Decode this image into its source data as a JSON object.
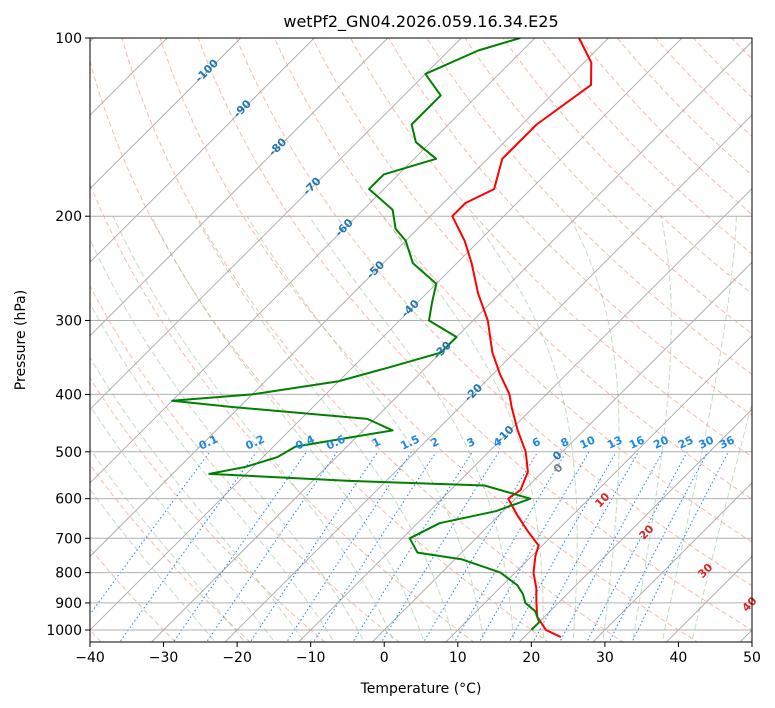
{
  "chart_data": {
    "type": "line",
    "title": "wetPf2_GN04.2026.059.16.34.E25",
    "xlabel": "Temperature (°C)",
    "ylabel": "Pressure (hPa)",
    "xlim": [
      -40,
      50
    ],
    "ylim": [
      1050,
      100
    ],
    "x_ticks": [
      "−40",
      "−30",
      "−20",
      "−10",
      "0",
      "10",
      "20",
      "30",
      "40",
      "50"
    ],
    "y_ticks": [
      {
        "p": 100,
        "label": "100"
      },
      {
        "p": 200,
        "label": "200"
      },
      {
        "p": 300,
        "label": "300"
      },
      {
        "p": 400,
        "label": "400"
      },
      {
        "p": 500,
        "label": "500"
      },
      {
        "p": 600,
        "label": "600"
      },
      {
        "p": 700,
        "label": "700"
      },
      {
        "p": 800,
        "label": "800"
      },
      {
        "p": 900,
        "label": "900"
      },
      {
        "p": 1000,
        "label": "1000"
      }
    ],
    "series": [
      {
        "name": "temperature",
        "color": "#ff0000",
        "points": [
          [
            1028,
            25
          ],
          [
            1000,
            22
          ],
          [
            950,
            19
          ],
          [
            900,
            17
          ],
          [
            850,
            15
          ],
          [
            800,
            12.5
          ],
          [
            750,
            10.5
          ],
          [
            720,
            9.5
          ],
          [
            680,
            6
          ],
          [
            640,
            2.5
          ],
          [
            600,
            -1
          ],
          [
            580,
            -0.5
          ],
          [
            540,
            -2
          ],
          [
            500,
            -5
          ],
          [
            460,
            -9
          ],
          [
            420,
            -13
          ],
          [
            400,
            -15
          ],
          [
            370,
            -19
          ],
          [
            340,
            -23
          ],
          [
            300,
            -28
          ],
          [
            270,
            -33
          ],
          [
            240,
            -38
          ],
          [
            220,
            -42
          ],
          [
            200,
            -47
          ],
          [
            190,
            -47
          ],
          [
            180,
            -45
          ],
          [
            160,
            -48
          ],
          [
            140,
            -48
          ],
          [
            120,
            -46
          ],
          [
            110,
            -49
          ],
          [
            100,
            -54
          ]
        ]
      },
      {
        "name": "dewpoint",
        "color": "#008000",
        "points": [
          [
            1000,
            20
          ],
          [
            970,
            20
          ],
          [
            930,
            18
          ],
          [
            900,
            15.5
          ],
          [
            870,
            14
          ],
          [
            840,
            12
          ],
          [
            800,
            8
          ],
          [
            760,
            1
          ],
          [
            740,
            -6
          ],
          [
            700,
            -9
          ],
          [
            660,
            -7
          ],
          [
            630,
            -1
          ],
          [
            600,
            2
          ],
          [
            570,
            -6
          ],
          [
            560,
            -25
          ],
          [
            545,
            -45
          ],
          [
            530,
            -41
          ],
          [
            510,
            -38
          ],
          [
            490,
            -37
          ],
          [
            460,
            -26
          ],
          [
            440,
            -31
          ],
          [
            420,
            -51
          ],
          [
            410,
            -60
          ],
          [
            400,
            -50
          ],
          [
            380,
            -40
          ],
          [
            360,
            -35
          ],
          [
            340,
            -30
          ],
          [
            320,
            -30
          ],
          [
            300,
            -36
          ],
          [
            280,
            -38
          ],
          [
            260,
            -40
          ],
          [
            240,
            -46
          ],
          [
            220,
            -50
          ],
          [
            210,
            -53
          ],
          [
            195,
            -56
          ],
          [
            180,
            -62
          ],
          [
            170,
            -62
          ],
          [
            160,
            -57
          ],
          [
            150,
            -62
          ],
          [
            140,
            -65
          ],
          [
            125,
            -65
          ],
          [
            115,
            -70
          ],
          [
            105,
            -66
          ],
          [
            100,
            -62
          ]
        ]
      }
    ],
    "isotherm_labels": [
      "-100",
      "-90",
      "-80",
      "-70",
      "-60",
      "-50",
      "-40",
      "-30",
      "-20",
      "-10",
      "0"
    ],
    "mixing_ratio_labels": [
      "0.1",
      "0.2",
      "0.4",
      "0.6",
      "1",
      "1.5",
      "2",
      "3",
      "4",
      "6",
      "8",
      "10",
      "13",
      "16",
      "20",
      "25",
      "30",
      "36"
    ],
    "dry_adiabat_labels": [
      "0",
      "10",
      "20",
      "30",
      "40"
    ],
    "colors": {
      "temperature": "#ff0000",
      "dewpoint": "#008000",
      "isotherm_label": "#1f77b4",
      "mixing_ratio": "#1e88e5",
      "dry_adiabat_label": "#d62728",
      "zero_label": "#7f7f7f"
    }
  }
}
